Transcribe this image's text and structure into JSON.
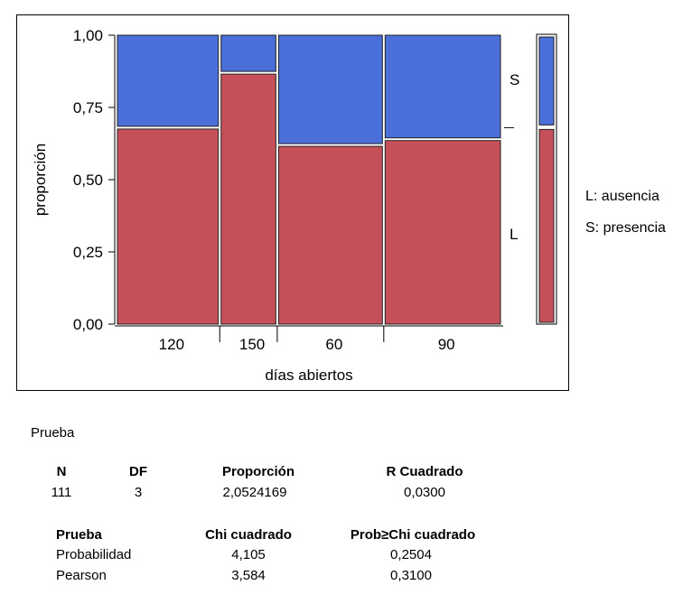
{
  "chart_data": {
    "type": "mosaic",
    "ylabel": "proporción",
    "xlabel": "días abiertos",
    "y_ticks": [
      "1,00",
      "0,75",
      "0,50",
      "0,25",
      "0,00"
    ],
    "ylim": [
      0,
      1
    ],
    "categories": [
      "120",
      "150",
      "60",
      "90"
    ],
    "column_widths": [
      0.35,
      0.19,
      0.36,
      0.4
    ],
    "series": [
      {
        "name": "L",
        "values": [
          0.68,
          0.87,
          0.62,
          0.64
        ],
        "color": "#c5505a"
      },
      {
        "name": "S",
        "values": [
          0.32,
          0.13,
          0.38,
          0.36
        ],
        "color": "#4a6fd9"
      }
    ],
    "overall": {
      "L": 0.68,
      "S": 0.32
    },
    "grid": false
  },
  "legend": [
    {
      "text": "L: ausencia"
    },
    {
      "text": "S: presencia"
    }
  ],
  "stats": {
    "title": "Prueba",
    "summary_headers": [
      "N",
      "DF",
      "Proporción",
      "R Cuadrado"
    ],
    "summary_values": [
      "111",
      "3",
      "2,0524169",
      "0,0300"
    ],
    "test_headers": [
      "Prueba",
      "Chi cuadrado",
      "Prob≥Chi cuadrado"
    ],
    "test_rows": [
      [
        "Probabilidad",
        "4,105",
        "0,2504"
      ],
      [
        "Pearson",
        "3,584",
        "0,3100"
      ]
    ]
  }
}
